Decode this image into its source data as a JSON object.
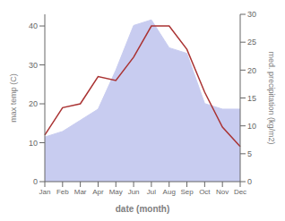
{
  "chart_data": {
    "type": "line",
    "xlabel": "date (month)",
    "ylabel": "max temp (C)",
    "y2label": "med. precipitation (kg/m2)",
    "categories": [
      "Jan",
      "Feb",
      "Mar",
      "Apr",
      "May",
      "Jun",
      "Jul",
      "Aug",
      "Sep",
      "Oct",
      "Nov",
      "Dec"
    ],
    "series": [
      {
        "type": "area",
        "color": "#c8ccf0",
        "axis": "y2",
        "values": [
          8,
          9,
          11,
          13,
          20,
          28,
          29,
          24,
          23,
          14,
          13,
          13
        ]
      },
      {
        "type": "line",
        "color": "#aa3333",
        "values": [
          12,
          19,
          20,
          27,
          26,
          32,
          40,
          40,
          34,
          23,
          14,
          9
        ]
      }
    ],
    "ylim": [
      0,
      43
    ],
    "yticks": [
      0,
      10,
      20,
      30,
      40
    ],
    "y2lim": [
      0,
      30
    ],
    "y2ticks": [
      0,
      5,
      10,
      15,
      20,
      25,
      30
    ],
    "grid": false
  }
}
